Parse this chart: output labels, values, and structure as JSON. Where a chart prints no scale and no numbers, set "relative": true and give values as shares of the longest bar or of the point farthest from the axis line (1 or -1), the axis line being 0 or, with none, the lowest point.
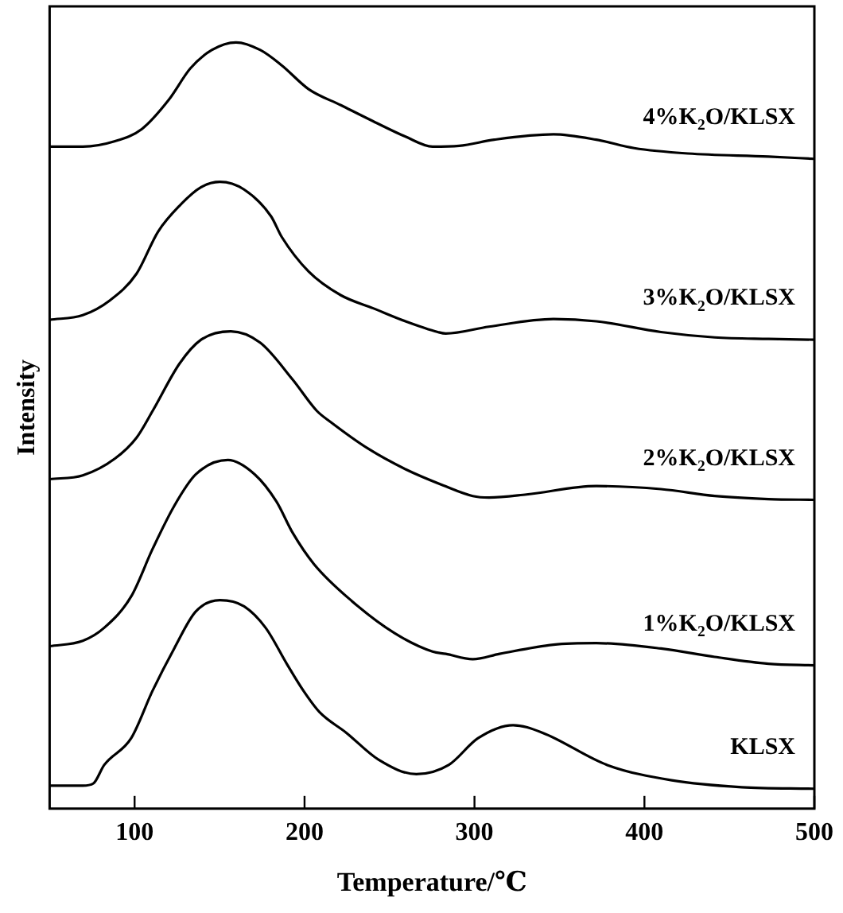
{
  "chart_data": {
    "type": "line",
    "relative": true,
    "xlabel": "Temperature/℃",
    "ylabel": "Intensity",
    "xlim": [
      50,
      500
    ],
    "xticks": [
      100,
      200,
      300,
      400,
      500
    ],
    "grid": false,
    "legend": false,
    "marker": "none",
    "line_style": "solid",
    "tick_labels": "x",
    "series": [
      {
        "name": "4%K$_{2}$O/KLSX",
        "color": "#000000",
        "x": [
          50,
          69.5,
          88.5,
          104.3,
          120.1,
          132.8,
          145.4,
          159.7,
          174,
          186.6,
          202.4,
          221.4,
          240.4,
          259.4,
          275.3,
          291,
          311.6,
          346.5,
          371.7,
          394,
          425.6,
          473,
          500
        ],
        "values": [
          0.864,
          0.864,
          0.871,
          0.887,
          0.925,
          0.966,
          0.99,
          1,
          0.99,
          0.97,
          0.939,
          0.918,
          0.897,
          0.877,
          0.864,
          0.865,
          0.873,
          0.88,
          0.873,
          0.862,
          0.855,
          0.851,
          0.848
        ]
      },
      {
        "name": "3%K$_{2}$O/KLSX",
        "color": "#000000",
        "x": [
          50,
          69.5,
          85.3,
          101.1,
          113.8,
          126.5,
          139.1,
          150.2,
          164.4,
          180.3,
          186.6,
          202.4,
          221.4,
          240.4,
          259.4,
          278.4,
          283.1,
          308.5,
          346.5,
          371.7,
          409.7,
          441.4,
          473,
          500
        ],
        "values": [
          0.638,
          0.644,
          0.663,
          0.698,
          0.753,
          0.787,
          0.811,
          0.818,
          0.808,
          0.773,
          0.746,
          0.701,
          0.67,
          0.653,
          0.636,
          0.622,
          0.62,
          0.629,
          0.639,
          0.636,
          0.622,
          0.615,
          0.613,
          0.612
        ]
      },
      {
        "name": "2%K$_{2}$O/KLSX",
        "color": "#000000",
        "x": [
          50,
          69.5,
          88.5,
          101.1,
          110.6,
          126.5,
          139.1,
          156.6,
          174,
          193,
          207.3,
          215.1,
          237.3,
          259.4,
          281.5,
          299,
          308.5,
          330.6,
          371.7,
          409.7,
          441.4,
          473,
          500
        ],
        "values": [
          0.43,
          0.435,
          0.457,
          0.484,
          0.519,
          0.581,
          0.612,
          0.623,
          0.608,
          0.56,
          0.519,
          0.505,
          0.47,
          0.443,
          0.422,
          0.408,
          0.406,
          0.41,
          0.421,
          0.417,
          0.408,
          0.404,
          0.403
        ]
      },
      {
        "name": "1%K$_{2}$O/KLSX",
        "color": "#000000",
        "x": [
          50,
          69.5,
          82.1,
          98,
          110.6,
          123.3,
          135.9,
          154.9,
          170.8,
          183.4,
          193,
          205.6,
          227.8,
          253,
          275.3,
          283.1,
          299,
          314.8,
          346.5,
          371.7,
          409.7,
          441.4,
          473,
          500
        ],
        "values": [
          0.212,
          0.219,
          0.236,
          0.277,
          0.339,
          0.395,
          0.436,
          0.455,
          0.436,
          0.401,
          0.36,
          0.319,
          0.271,
          0.229,
          0.205,
          0.202,
          0.195,
          0.202,
          0.214,
          0.216,
          0.209,
          0.198,
          0.189,
          0.187
        ]
      },
      {
        "name": "KLSX",
        "color": "#000000",
        "x": [
          50,
          69.5,
          75.8,
          82.1,
          98,
          110.6,
          123.3,
          135.9,
          150.2,
          164.4,
          177.1,
          189.8,
          199.3,
          208.8,
          224.6,
          243.5,
          265.8,
          284.8,
          302.1,
          322.7,
          340.1,
          378.1,
          416.1,
          457.2,
          500
        ],
        "values": [
          0.03,
          0.03,
          0.033,
          0.057,
          0.092,
          0.154,
          0.209,
          0.257,
          0.272,
          0.264,
          0.236,
          0.188,
          0.154,
          0.126,
          0.099,
          0.064,
          0.045,
          0.057,
          0.092,
          0.109,
          0.099,
          0.057,
          0.037,
          0.028,
          0.026
        ]
      }
    ]
  }
}
